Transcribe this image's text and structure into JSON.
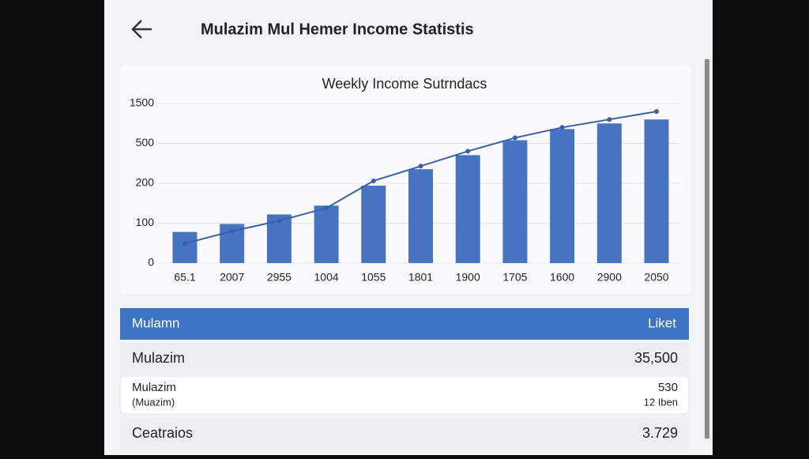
{
  "header": {
    "title": "Mulazim Mul Hemer Income Statistis"
  },
  "chart_data": {
    "type": "bar-line",
    "title": "Weekly Income Sutrndacs",
    "categories": [
      "65.1",
      "2007",
      "2955",
      "1004",
      "1055",
      "1801",
      "1900",
      "1705",
      "1600",
      "2900",
      "2050"
    ],
    "series": [
      {
        "type": "bar",
        "color": "#4674c2",
        "values": [
          78,
          98,
          122,
          144,
          194,
          306,
          412,
          580,
          860,
          1000,
          1100
        ]
      },
      {
        "type": "line",
        "color": "#3a5fa8",
        "values": [
          49,
          80,
          106,
          138,
          218,
          329,
          441,
          640,
          900,
          1100,
          1300
        ]
      }
    ],
    "ylim": [
      0,
      1500
    ],
    "yticks": [
      0,
      100,
      200,
      500,
      1500
    ],
    "grid": true
  },
  "table": {
    "header": [
      "Mulamn",
      "Liket"
    ],
    "rows": [
      {
        "label": "Mulazim",
        "value": "35,500"
      },
      {
        "label": "Mulazim",
        "sublabel": "(Muazim)",
        "value": "530",
        "subvalue": "12 Iben"
      },
      {
        "label": "Ceatraios",
        "value": "3.729"
      }
    ]
  }
}
